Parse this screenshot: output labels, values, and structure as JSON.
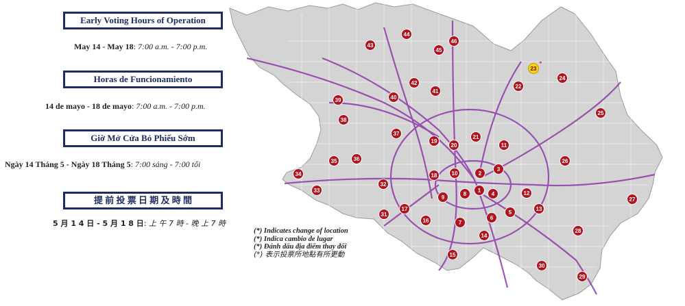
{
  "sections": [
    {
      "heading": "Early Voting Hours of Operation",
      "dates": "May 14 -  May 18",
      "times": "7:00 a.m. -  7:00 p.m."
    },
    {
      "heading": "Horas de Funcionamiento",
      "dates": "14 de mayo -  18 de mayo",
      "times": "7:00 a.m. -  7:00 p.m."
    },
    {
      "heading": "Giờ Mở Cửa Bỏ Phiếu Sớm",
      "dates": "Ngày 14 Tháng 5 - Ngày 18 Tháng 5",
      "times": "7:00 sáng -  7:00 tối"
    },
    {
      "heading": "提 前 投 票 日 期 及 時 間",
      "dates": "5 月 1 4 日 - 5 月 1 8 日",
      "times": "上 午 7 時  -  晚 上 7 時"
    }
  ],
  "legend": [
    "(*) Indicates change of location",
    "(*) Indica cambio de lugar",
    "(*) Đánh dấu địa điểm thay đổi",
    "(*) 表示投票所地點有所更動"
  ],
  "colors": {
    "heading_border": "#1f2b63",
    "pin": "#b0151f",
    "highlight_pin": "#f2d516",
    "roads": "#8e3aa8",
    "county": "#d4d4d4"
  },
  "locations": [
    {
      "label": "1"
    },
    {
      "label": "2"
    },
    {
      "label": "3"
    },
    {
      "label": "4"
    },
    {
      "label": "5"
    },
    {
      "label": "6"
    },
    {
      "label": "7"
    },
    {
      "label": "8"
    },
    {
      "label": "9"
    },
    {
      "label": "10"
    },
    {
      "label": "11"
    },
    {
      "label": "12"
    },
    {
      "label": "13"
    },
    {
      "label": "14"
    },
    {
      "label": "15"
    },
    {
      "label": "16"
    },
    {
      "label": "17"
    },
    {
      "label": "18"
    },
    {
      "label": "19"
    },
    {
      "label": "20"
    },
    {
      "label": "21"
    },
    {
      "label": "22"
    },
    {
      "label": "23",
      "changed": true
    },
    {
      "label": "24"
    },
    {
      "label": "25"
    },
    {
      "label": "26"
    },
    {
      "label": "27"
    },
    {
      "label": "28"
    },
    {
      "label": "29"
    },
    {
      "label": "30"
    },
    {
      "label": "31"
    },
    {
      "label": "32"
    },
    {
      "label": "33"
    },
    {
      "label": "34"
    },
    {
      "label": "35"
    },
    {
      "label": "36"
    },
    {
      "label": "37"
    },
    {
      "label": "38"
    },
    {
      "label": "39"
    },
    {
      "label": "40"
    },
    {
      "label": "41"
    },
    {
      "label": "42"
    },
    {
      "label": "43"
    },
    {
      "label": "44"
    },
    {
      "label": "45"
    },
    {
      "label": "46"
    }
  ]
}
